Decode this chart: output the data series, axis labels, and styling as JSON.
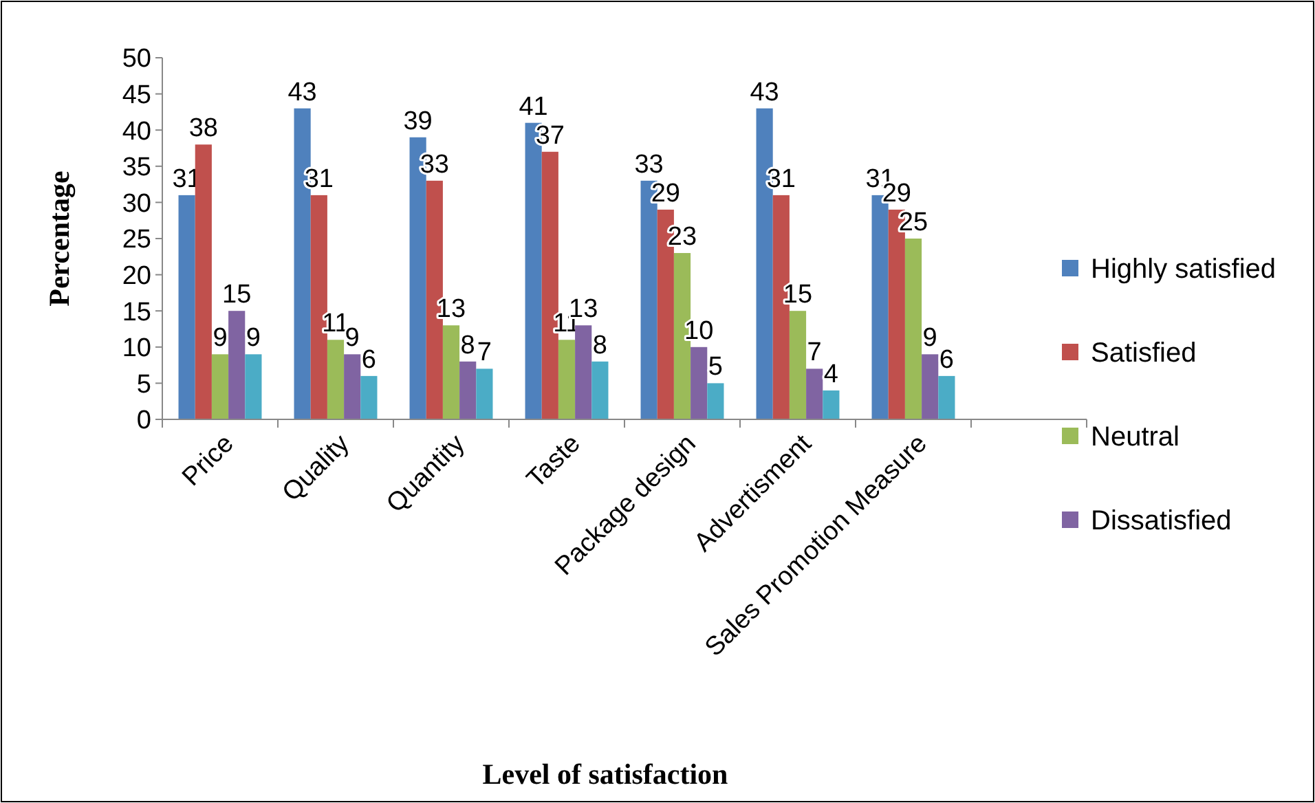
{
  "chart_data": {
    "type": "bar",
    "xlabel": "Level of satisfaction",
    "ylabel": "Percentage",
    "categories": [
      "Price",
      "Quality",
      "Quantity",
      "Taste",
      "Package design",
      "Advertisment",
      "Sales Promotion Measure",
      null
    ],
    "series": [
      {
        "name": "Highly satisfied",
        "color": "#4f81bd",
        "values": [
          31,
          43,
          39,
          41,
          33,
          43,
          31,
          null
        ]
      },
      {
        "name": "Satisfied",
        "color": "#c0504d",
        "values": [
          38,
          31,
          33,
          37,
          29,
          31,
          29,
          null
        ]
      },
      {
        "name": "Neutral",
        "color": "#9bbb59",
        "values": [
          9,
          11,
          13,
          11,
          23,
          15,
          25,
          null
        ]
      },
      {
        "name": "Dissatisfied",
        "color": "#8064a2",
        "values": [
          15,
          9,
          8,
          13,
          10,
          7,
          9,
          null
        ]
      },
      {
        "color": "#4bacc6",
        "values": [
          9,
          6,
          7,
          8,
          5,
          4,
          6,
          null
        ]
      }
    ],
    "ylim": [
      0,
      50
    ],
    "yticks": [
      0,
      5,
      10,
      15,
      20,
      25,
      30,
      35,
      40,
      45,
      50
    ],
    "grid": false,
    "legend": "right",
    "data_labels": true
  }
}
